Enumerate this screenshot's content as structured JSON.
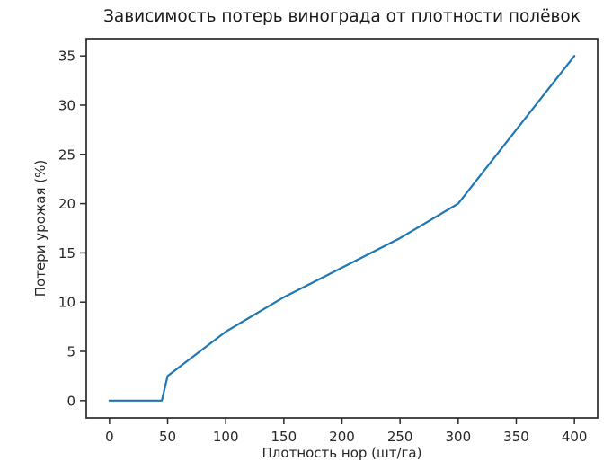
{
  "chart_data": {
    "type": "line",
    "title": "Зависимость потерь винограда от плотности полёвок",
    "xlabel": "Плотность нор (шт/га)",
    "ylabel": "Потери урожая (%)",
    "x": [
      0,
      45,
      50,
      100,
      150,
      200,
      250,
      300,
      400
    ],
    "y": [
      0,
      0,
      2.5,
      7,
      10.5,
      13.5,
      16.5,
      20,
      35
    ],
    "xticks": [
      0,
      50,
      100,
      150,
      200,
      250,
      300,
      350,
      400
    ],
    "yticks": [
      0,
      5,
      10,
      15,
      20,
      25,
      30,
      35
    ],
    "xlim": [
      -20,
      420
    ],
    "ylim": [
      -1.75,
      36.75
    ],
    "grid": false,
    "legend": null,
    "line_color": "#1f77b4",
    "axis_color": "#2b2b2b",
    "text_color": "#262626",
    "background_color": "#ffffff"
  }
}
